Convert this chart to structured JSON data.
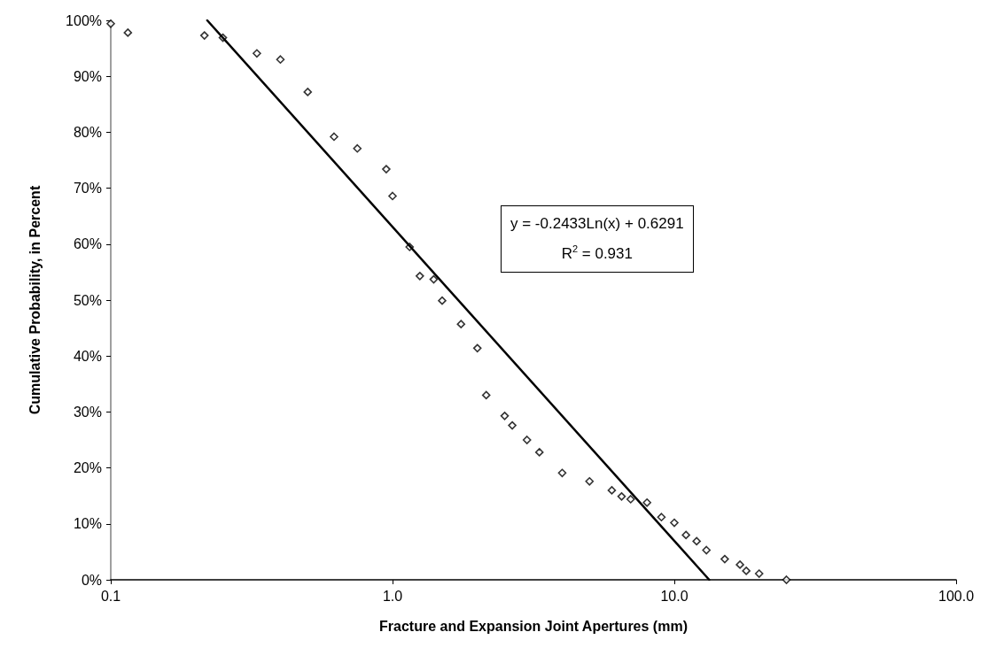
{
  "chart_data": {
    "type": "scatter",
    "xlabel": "Fracture and Expansion Joint Apertures (mm)",
    "ylabel": "Cumulative Probability, in Percent",
    "log": "x",
    "xlim": [
      0.1,
      100
    ],
    "xticks": [
      {
        "value": 0.1,
        "label": "0.1"
      },
      {
        "value": 1,
        "label": "1.0"
      },
      {
        "value": 10,
        "label": "10.0"
      },
      {
        "value": 100,
        "label": "100.0"
      }
    ],
    "ylim": [
      0,
      100
    ],
    "yticks": [
      {
        "value": 0,
        "label": "0%"
      },
      {
        "value": 10,
        "label": "10%"
      },
      {
        "value": 20,
        "label": "20%"
      },
      {
        "value": 30,
        "label": "30%"
      },
      {
        "value": 40,
        "label": "40%"
      },
      {
        "value": 50,
        "label": "50%"
      },
      {
        "value": 60,
        "label": "60%"
      },
      {
        "value": 70,
        "label": "70%"
      },
      {
        "value": 80,
        "label": "80%"
      },
      {
        "value": 90,
        "label": "90%"
      },
      {
        "value": 100,
        "label": "100%"
      }
    ],
    "grid": false,
    "annotations": [
      "y = -0.2433Ln(x) + 0.6291",
      "R$^{2}$ = 0.931"
    ],
    "series": [
      {
        "type": "scatter",
        "color": "#000000",
        "marker": "diamond",
        "x": [
          0.1,
          0.115,
          0.215,
          0.25,
          0.33,
          0.4,
          0.5,
          0.62,
          0.75,
          0.95,
          1.0,
          1.15,
          1.25,
          1.4,
          1.5,
          1.75,
          2.0,
          2.15,
          2.5,
          2.66,
          3.0,
          3.32,
          4.0,
          5.0,
          6.0,
          6.5,
          7.0,
          8.0,
          9.0,
          10.0,
          11.0,
          12.0,
          13.0,
          15.1,
          17.1,
          18.0,
          20.0,
          25.0
        ],
        "values": [
          99.4,
          97.8,
          97.3,
          96.9,
          94.1,
          93.0,
          87.2,
          79.2,
          77.1,
          73.4,
          68.6,
          59.5,
          54.3,
          53.7,
          49.9,
          45.7,
          41.4,
          33.0,
          29.3,
          27.6,
          25.0,
          22.8,
          19.1,
          17.6,
          16.0,
          14.9,
          14.4,
          13.8,
          11.2,
          10.2,
          8.0,
          6.9,
          5.3,
          3.7,
          2.7,
          1.6,
          1.1,
          0
        ]
      },
      {
        "type": "line",
        "color": "#000000",
        "marker": "none",
        "line_style": "solid",
        "x": [
          0.22,
          13.3
        ],
        "values": [
          100,
          0
        ]
      }
    ]
  }
}
